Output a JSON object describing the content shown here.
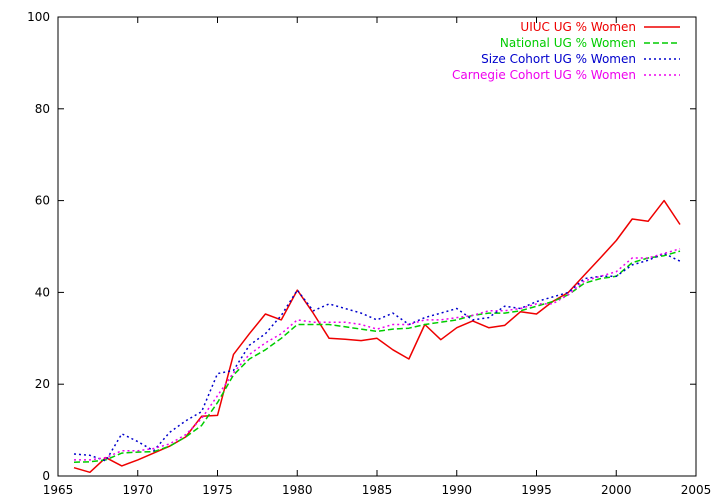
{
  "chart_data": {
    "type": "line",
    "title": "",
    "xlabel": "",
    "ylabel": "",
    "xlim": [
      1965,
      2005
    ],
    "ylim": [
      0,
      100
    ],
    "x_ticks": [
      1965,
      1970,
      1975,
      1980,
      1985,
      1990,
      1995,
      2000,
      2005
    ],
    "y_ticks": [
      0,
      20,
      40,
      60,
      80,
      100
    ],
    "grid": false,
    "legend_position": "top-right",
    "x": [
      1966,
      1967,
      1968,
      1969,
      1970,
      1971,
      1972,
      1973,
      1974,
      1975,
      1976,
      1977,
      1978,
      1979,
      1980,
      1981,
      1982,
      1983,
      1984,
      1985,
      1986,
      1987,
      1988,
      1989,
      1990,
      1991,
      1992,
      1993,
      1994,
      1995,
      1996,
      1997,
      1998,
      1999,
      2000,
      2001,
      2002,
      2003,
      2004
    ],
    "series": [
      {
        "name": "UIUC UG % Women",
        "color": "#ee0000",
        "dash": "solid",
        "values": [
          1.8,
          0.8,
          4.0,
          2.2,
          3.5,
          5.0,
          6.5,
          8.5,
          13.0,
          13.2,
          26.5,
          31.0,
          35.3,
          34.0,
          40.5,
          35.5,
          30.0,
          29.8,
          29.5,
          30.0,
          27.5,
          25.5,
          33.0,
          29.7,
          32.3,
          33.8,
          32.3,
          32.8,
          35.8,
          35.3,
          38.0,
          40.0,
          43.8,
          47.5,
          51.3,
          56.0,
          55.5,
          60.0,
          54.8
        ]
      },
      {
        "name": "National UG % Women",
        "color": "#00cc00",
        "dash": "dashed",
        "values": [
          3.0,
          3.1,
          3.5,
          5.0,
          5.2,
          5.3,
          6.5,
          8.5,
          11.0,
          16.0,
          22.0,
          25.5,
          27.5,
          30.0,
          33.0,
          33.0,
          33.0,
          32.5,
          32.0,
          31.5,
          32.0,
          32.2,
          33.0,
          33.5,
          34.0,
          35.0,
          35.5,
          35.5,
          36.0,
          37.0,
          38.0,
          39.5,
          42.0,
          43.0,
          43.5,
          46.5,
          47.5,
          48.0,
          49.0
        ]
      },
      {
        "name": "Size Cohort UG % Women",
        "color": "#0000cc",
        "dash": "dotted",
        "values": [
          4.8,
          4.5,
          3.3,
          9.2,
          7.5,
          5.5,
          9.5,
          12.0,
          14.0,
          22.3,
          23.0,
          28.5,
          31.0,
          35.0,
          40.5,
          36.0,
          37.5,
          36.5,
          35.5,
          34.0,
          35.5,
          33.0,
          34.5,
          35.5,
          36.5,
          34.0,
          34.5,
          37.0,
          36.5,
          38.0,
          39.0,
          40.0,
          43.0,
          43.5,
          43.5,
          46.0,
          47.0,
          48.5,
          46.8
        ]
      },
      {
        "name": "Carnegie Cohort UG % Women",
        "color": "#ee00ee",
        "dash": "dotted",
        "values": [
          3.5,
          3.5,
          4.0,
          5.5,
          5.5,
          6.0,
          7.0,
          9.0,
          12.5,
          17.5,
          22.5,
          26.5,
          29.0,
          31.0,
          34.0,
          33.5,
          33.5,
          33.5,
          33.0,
          32.0,
          33.0,
          33.0,
          34.0,
          34.0,
          34.5,
          35.0,
          36.0,
          36.0,
          36.5,
          37.5,
          37.5,
          39.5,
          42.5,
          43.5,
          44.5,
          47.5,
          47.5,
          48.5,
          49.5
        ]
      }
    ]
  }
}
